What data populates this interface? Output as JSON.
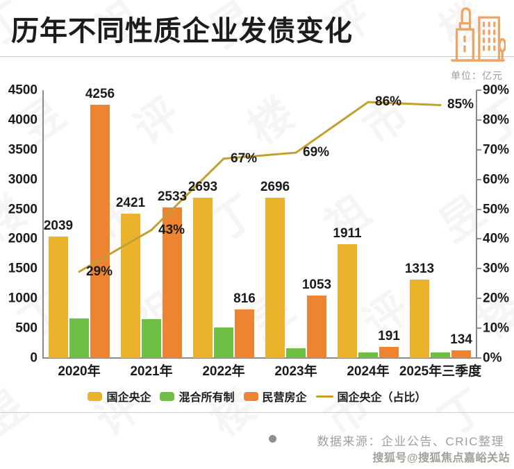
{
  "page": {
    "title": "历年不同性质企业发债变化",
    "unit_label": "单位：亿元",
    "source_text": "数据来源：企业公告、CRIC整理",
    "sohu_stamp": "搜狐号@搜狐焦点嘉峪关站",
    "watermark_pattern": "丁祖昱评楼市"
  },
  "icons": {
    "header": "buildings-icon",
    "source_marker": "bullet-dot-icon"
  },
  "colors": {
    "soe_bar": "#EAB32B",
    "mixed_bar": "#6FBE45",
    "private_bar": "#ED8433",
    "ratio_line": "#C2A02F",
    "axis": "#8A8A8A",
    "title_text": "#1C1C1C",
    "muted_text": "#9E9E9E",
    "divider": "#CFCFCF",
    "icon_stroke": "#ECA467"
  },
  "chart_data": {
    "type": "bar",
    "subtype": "grouped bars with overlay line (dual axis)",
    "categories": [
      "2020年",
      "2021年",
      "2022年",
      "2023年",
      "2024年",
      "2025年三季度"
    ],
    "series": [
      {
        "name": "国企央企",
        "type": "bar",
        "color_key": "soe_bar",
        "values": [
          2039,
          2421,
          2693,
          2696,
          1911,
          1313
        ],
        "show_labels": true
      },
      {
        "name": "混合所有制",
        "type": "bar",
        "color_key": "mixed_bar",
        "values": [
          670,
          655,
          515,
          165,
          95,
          90
        ],
        "show_labels": false
      },
      {
        "name": "民营房企",
        "type": "bar",
        "color_key": "private_bar",
        "values": [
          4256,
          2533,
          816,
          1053,
          191,
          134
        ],
        "show_labels": true
      },
      {
        "name": "国企央企（占比）",
        "type": "line",
        "axis": "right",
        "color_key": "ratio_line",
        "values": [
          29,
          43,
          67,
          69,
          86,
          85
        ],
        "suffix": "%",
        "show_labels": true
      }
    ],
    "left_axis": {
      "min": 0,
      "max": 4500,
      "step": 500,
      "tick_labels": [
        "0",
        "500",
        "1000",
        "1500",
        "2000",
        "2500",
        "3000",
        "3500",
        "4000",
        "4500"
      ]
    },
    "right_axis": {
      "min": 0,
      "max": 90,
      "step": 10,
      "suffix": "%",
      "tick_labels": [
        "0%",
        "10%",
        "20%",
        "30%",
        "40%",
        "50%",
        "60%",
        "70%",
        "80%",
        "90%"
      ]
    },
    "grid": false,
    "legend_position": "bottom-center"
  }
}
